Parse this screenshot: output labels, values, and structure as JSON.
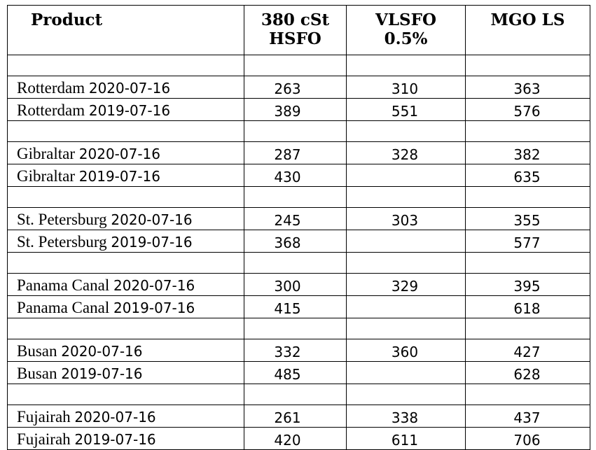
{
  "headers": {
    "product": "Product",
    "hsfo_line1": "380 cSt",
    "hsfo_line2": "HSFO",
    "vlsfo_line1": "VLSFO",
    "vlsfo_line2": "0.5%",
    "mgo": "MGO LS"
  },
  "groups": [
    {
      "rows": [
        {
          "port": "Rotterdam",
          "date": "2020-07-16",
          "hsfo": "263",
          "vlsfo": "310",
          "mgo": "363"
        },
        {
          "port": "Rotterdam",
          "date": "2019-07-16",
          "hsfo": "389",
          "vlsfo": "551",
          "mgo": "576"
        }
      ]
    },
    {
      "rows": [
        {
          "port": "Gibraltar",
          "date": "2020-07-16",
          "hsfo": "287",
          "vlsfo": "328",
          "mgo": "382"
        },
        {
          "port": "Gibraltar",
          "date": "2019-07-16",
          "hsfo": "430",
          "vlsfo": "",
          "mgo": "635"
        }
      ]
    },
    {
      "rows": [
        {
          "port": "St. Petersburg",
          "date": "2020-07-16",
          "hsfo": "245",
          "vlsfo": "303",
          "mgo": "355"
        },
        {
          "port": "St. Petersburg",
          "date": "2019-07-16",
          "hsfo": "368",
          "vlsfo": "",
          "mgo": "577"
        }
      ]
    },
    {
      "rows": [
        {
          "port": "Panama Canal",
          "date": "2020-07-16",
          "hsfo": "300",
          "vlsfo": "329",
          "mgo": "395"
        },
        {
          "port": "Panama Canal",
          "date": "2019-07-16",
          "hsfo": "415",
          "vlsfo": "",
          "mgo": "618"
        }
      ]
    },
    {
      "rows": [
        {
          "port": "Busan",
          "date": "2020-07-16",
          "hsfo": "332",
          "vlsfo": "360",
          "mgo": "427"
        },
        {
          "port": "Busan",
          "date": "2019-07-16",
          "hsfo": "485",
          "vlsfo": "",
          "mgo": "628"
        }
      ]
    },
    {
      "rows": [
        {
          "port": "Fujairah",
          "date": "2020-07-16",
          "hsfo": "261",
          "vlsfo": "338",
          "mgo": "437"
        },
        {
          "port": "Fujairah",
          "date": "2019-07-16",
          "hsfo": "420",
          "vlsfo": "611",
          "mgo": "706"
        }
      ]
    }
  ]
}
